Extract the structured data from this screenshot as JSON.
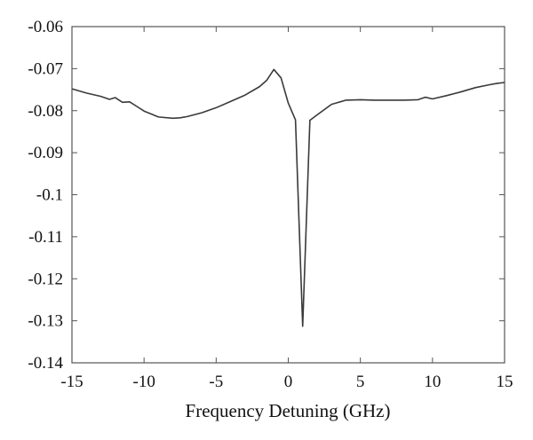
{
  "chart_data": {
    "type": "line",
    "title": "",
    "xlabel": "Frequency Detuning (GHz)",
    "ylabel": "",
    "xlim": [
      -15,
      15
    ],
    "ylim": [
      -0.14,
      -0.06
    ],
    "xticks": [
      -15,
      -10,
      -5,
      0,
      5,
      10,
      15
    ],
    "yticks": [
      -0.06,
      -0.07,
      -0.08,
      -0.09,
      -0.1,
      -0.11,
      -0.12,
      -0.13,
      -0.14
    ],
    "xtick_labels": [
      "-15",
      "-10",
      "-5",
      "0",
      "5",
      "10",
      "15"
    ],
    "ytick_labels": [
      "-0.06",
      "-0.07",
      "-0.08",
      "-0.09",
      "-0.1",
      "-0.11",
      "-0.12",
      "-0.13",
      "-0.14"
    ],
    "grid": false,
    "legend": "none",
    "series": [
      {
        "color": "#3a3a3a",
        "x": [
          -15,
          -14,
          -13,
          -12.4,
          -12,
          -11.5,
          -11,
          -10.5,
          -10,
          -9,
          -8,
          -7.5,
          -7,
          -6,
          -5,
          -4,
          -3,
          -2,
          -1.5,
          -1,
          -0.5,
          0,
          0.5,
          1,
          1.5,
          2,
          3,
          4,
          5,
          6,
          7,
          8,
          9,
          9.5,
          10,
          11,
          12,
          13,
          14,
          14.5,
          15
        ],
        "y": [
          -0.0748,
          -0.0758,
          -0.0766,
          -0.0773,
          -0.0769,
          -0.078,
          -0.0779,
          -0.079,
          -0.0801,
          -0.0815,
          -0.0818,
          -0.0817,
          -0.0814,
          -0.0805,
          -0.0793,
          -0.0778,
          -0.0763,
          -0.0743,
          -0.0728,
          -0.0702,
          -0.0722,
          -0.0782,
          -0.0822,
          -0.1313,
          -0.0823,
          -0.081,
          -0.0785,
          -0.0775,
          -0.0774,
          -0.0775,
          -0.0775,
          -0.0775,
          -0.0774,
          -0.0768,
          -0.0772,
          -0.0764,
          -0.0755,
          -0.0745,
          -0.0738,
          -0.0735,
          -0.0733
        ]
      }
    ]
  }
}
